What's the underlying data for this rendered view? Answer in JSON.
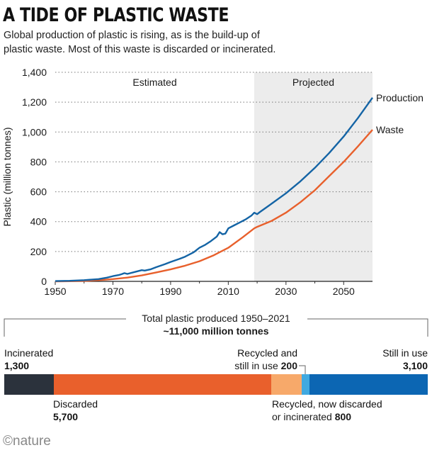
{
  "title": "A TIDE OF PLASTIC WASTE",
  "subtitle_line1": "Global production of plastic is rising, as is the build-up of",
  "subtitle_line2": "plastic waste. Most of this waste is discarded or incinerated.",
  "colors": {
    "production": "#1464a5",
    "waste": "#e8602c",
    "projected_bg": "#ececec",
    "incinerated": "#2b323c",
    "discarded": "#e9602c",
    "recycled_now_discarded": "#f7a96a",
    "recycled_still_in_use": "#40a9e0",
    "still_in_use": "#0c66b3"
  },
  "chart_data": [
    {
      "type": "line",
      "title": "",
      "xlabel": "",
      "ylabel": "Plastic (million tonnes)",
      "xlim": [
        1950,
        2060
      ],
      "ylim": [
        0,
        1400
      ],
      "xticks": [
        1950,
        1970,
        1990,
        2010,
        2030,
        2050
      ],
      "yticks": [
        0,
        200,
        400,
        600,
        800,
        1000,
        1200,
        1400
      ],
      "ytick_labels": [
        "0",
        "200",
        "400",
        "600",
        "800",
        "1,000",
        "1,200",
        "1,400"
      ],
      "grid": "horizontal dotted",
      "regions": [
        {
          "label": "Estimated",
          "x_start": 1950,
          "x_end": 2019
        },
        {
          "label": "Projected",
          "x_start": 2019,
          "x_end": 2060
        }
      ],
      "series": [
        {
          "name": "Production",
          "x": [
            1950,
            1955,
            1960,
            1965,
            1968,
            1970,
            1972,
            1973,
            1974,
            1975,
            1978,
            1980,
            1981,
            1983,
            1985,
            1988,
            1990,
            1993,
            1995,
            1998,
            2000,
            2002,
            2004,
            2006,
            2007,
            2008,
            2009,
            2010,
            2012,
            2014,
            2016,
            2018,
            2019,
            2020,
            2021,
            2025,
            2030,
            2035,
            2040,
            2045,
            2050,
            2055,
            2060
          ],
          "y": [
            2,
            4,
            8,
            15,
            25,
            35,
            42,
            48,
            55,
            50,
            65,
            75,
            72,
            80,
            95,
            115,
            130,
            150,
            165,
            195,
            225,
            245,
            270,
            300,
            330,
            315,
            320,
            355,
            375,
            395,
            415,
            440,
            460,
            450,
            465,
            520,
            590,
            670,
            760,
            860,
            970,
            1095,
            1230
          ]
        },
        {
          "name": "Waste",
          "x": [
            1950,
            1955,
            1960,
            1965,
            1970,
            1975,
            1980,
            1985,
            1990,
            1995,
            2000,
            2005,
            2010,
            2015,
            2019,
            2020,
            2025,
            2030,
            2035,
            2040,
            2045,
            2050,
            2055,
            2060
          ],
          "y": [
            0,
            1,
            3,
            8,
            15,
            25,
            40,
            60,
            80,
            105,
            135,
            175,
            225,
            295,
            355,
            365,
            405,
            460,
            530,
            610,
            705,
            800,
            905,
            1015
          ]
        }
      ]
    },
    {
      "type": "bar",
      "title": "Total plastic produced 1950–2021",
      "total_label": "~11,000 million tonnes",
      "orientation": "stacked horizontal",
      "categories": [
        "Incinerated",
        "Discarded",
        "Recycled, now discarded or incinerated",
        "Recycled and still in use",
        "Still in use"
      ],
      "values": [
        1300,
        5700,
        800,
        200,
        3100
      ]
    }
  ],
  "breakdown_labels": {
    "incinerated": {
      "name": "Incinerated",
      "value": "1,300"
    },
    "discarded": {
      "name": "Discarded",
      "value": "5,700"
    },
    "recycled_still_line1": "Recycled and",
    "recycled_still_line2": "still in use",
    "recycled_still_value": "200",
    "still_in_use": {
      "name": "Still in use",
      "value": "3,100"
    },
    "recycled_now_line1": "Recycled, now discarded",
    "recycled_now_line2": "or incinerated",
    "recycled_now_value": "800"
  },
  "logo": "©nature"
}
